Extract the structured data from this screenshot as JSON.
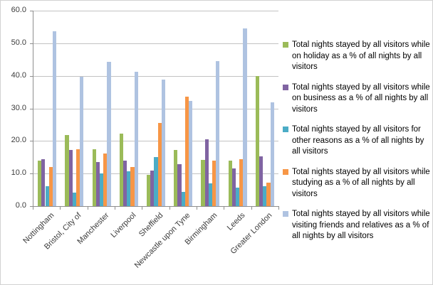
{
  "chart_data": {
    "type": "bar",
    "title": "",
    "xlabel": "",
    "ylabel": "",
    "ylim": [
      0,
      60
    ],
    "ytick_step": 10,
    "y_tick_labels": [
      "0.0",
      "10.0",
      "20.0",
      "30.0",
      "40.0",
      "50.0",
      "60.0"
    ],
    "grid": true,
    "legend_position": "right",
    "categories": [
      "Nottingham",
      "Bristol, City of",
      "Manchester",
      "Liverpool",
      "Sheffield",
      "Newcastle upon Tyne",
      "Birmingham",
      "Leeds",
      "Greater London"
    ],
    "series": [
      {
        "name": "Total nights stayed by all visitors while on holiday as a % of all nights by all visitors",
        "color": "#9BBB59",
        "values": [
          14.0,
          21.8,
          17.4,
          22.3,
          9.7,
          17.2,
          14.2,
          13.9,
          40.0
        ]
      },
      {
        "name": "Total nights stayed by all visitors while on business as a % of all nights by all visitors",
        "color": "#8064A2",
        "values": [
          14.5,
          17.2,
          13.5,
          13.9,
          11.0,
          12.8,
          20.5,
          11.5,
          15.3
        ]
      },
      {
        "name": "Total nights  stayed by all visitors for other reasons as a % of all nights by all visitors",
        "color": "#4BACC6",
        "values": [
          6.0,
          4.1,
          10.0,
          10.6,
          15.0,
          4.3,
          6.9,
          5.7,
          6.0
        ]
      },
      {
        "name": "Total nights stayed by all visitors while studying as a % of all nights by all visitors",
        "color": "#F79646",
        "values": [
          12.0,
          17.5,
          16.1,
          12.0,
          25.5,
          33.7,
          14.0,
          14.4,
          7.3
        ]
      },
      {
        "name": "Total nights stayed by all visitors while visiting friends and relatives as a % of all nights by all visitors",
        "color": "#AFC3E1",
        "values": [
          53.6,
          39.6,
          44.2,
          41.2,
          38.8,
          32.2,
          44.5,
          54.6,
          31.9
        ]
      }
    ]
  }
}
